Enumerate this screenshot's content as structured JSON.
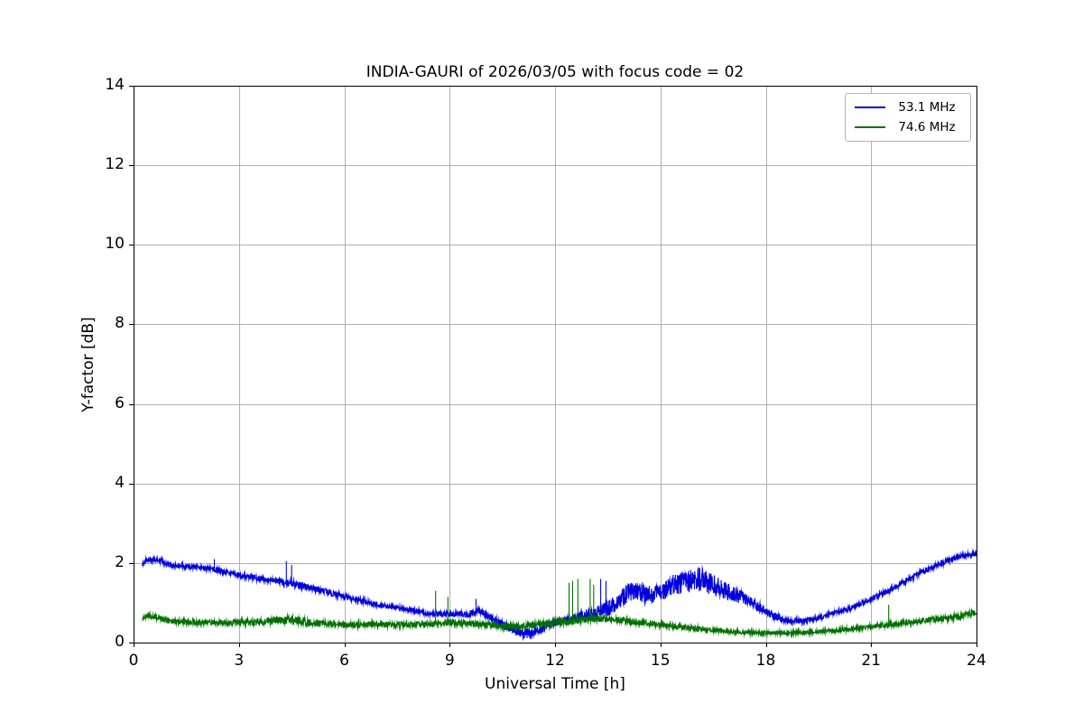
{
  "chart_data": {
    "type": "line",
    "title": "INDIA-GAURI of 2026/03/05 with focus code = 02",
    "xlabel": "Universal Time [h]",
    "ylabel": "Y-factor [dB]",
    "xlim": [
      0,
      24
    ],
    "ylim": [
      0,
      14
    ],
    "xticks": [
      0,
      3,
      6,
      9,
      12,
      15,
      18,
      21,
      24
    ],
    "yticks": [
      0,
      2,
      4,
      6,
      8,
      10,
      12,
      14
    ],
    "grid": true,
    "grid_color": "#b0b0b0",
    "legend_position": "upper right",
    "series": [
      {
        "label": "53.1 MHz",
        "color": "#0000dd",
        "base_points": [
          [
            0.25,
            2.0
          ],
          [
            0.4,
            2.1
          ],
          [
            0.8,
            2.05
          ],
          [
            1.0,
            1.95
          ],
          [
            1.5,
            1.92
          ],
          [
            2.0,
            1.88
          ],
          [
            2.5,
            1.8
          ],
          [
            3.0,
            1.7
          ],
          [
            3.5,
            1.62
          ],
          [
            4.0,
            1.55
          ],
          [
            4.5,
            1.5
          ],
          [
            5.0,
            1.38
          ],
          [
            5.5,
            1.28
          ],
          [
            6.0,
            1.15
          ],
          [
            6.5,
            1.05
          ],
          [
            7.0,
            0.95
          ],
          [
            7.5,
            0.88
          ],
          [
            8.0,
            0.8
          ],
          [
            8.5,
            0.72
          ],
          [
            9.0,
            0.72
          ],
          [
            9.5,
            0.7
          ],
          [
            9.8,
            0.8
          ],
          [
            10.2,
            0.6
          ],
          [
            10.6,
            0.4
          ],
          [
            11.0,
            0.25
          ],
          [
            11.3,
            0.22
          ],
          [
            11.6,
            0.35
          ],
          [
            12.0,
            0.5
          ],
          [
            12.4,
            0.6
          ],
          [
            12.8,
            0.7
          ],
          [
            13.2,
            0.75
          ],
          [
            13.6,
            0.9
          ],
          [
            14.0,
            1.2
          ],
          [
            14.3,
            1.35
          ],
          [
            14.6,
            1.2
          ],
          [
            15.0,
            1.25
          ],
          [
            15.4,
            1.45
          ],
          [
            15.8,
            1.55
          ],
          [
            16.1,
            1.6
          ],
          [
            16.5,
            1.45
          ],
          [
            17.0,
            1.25
          ],
          [
            17.4,
            1.1
          ],
          [
            17.8,
            0.9
          ],
          [
            18.2,
            0.68
          ],
          [
            18.6,
            0.55
          ],
          [
            19.0,
            0.55
          ],
          [
            19.4,
            0.6
          ],
          [
            19.8,
            0.7
          ],
          [
            20.4,
            0.85
          ],
          [
            21.0,
            1.1
          ],
          [
            21.5,
            1.3
          ],
          [
            22.0,
            1.55
          ],
          [
            22.5,
            1.8
          ],
          [
            23.0,
            2.0
          ],
          [
            23.5,
            2.15
          ],
          [
            24.0,
            2.25
          ]
        ],
        "noise_amplitude": [
          [
            0.25,
            0.07
          ],
          [
            2.0,
            0.06
          ],
          [
            4.0,
            0.07
          ],
          [
            4.5,
            0.1
          ],
          [
            5.0,
            0.08
          ],
          [
            8.0,
            0.06
          ],
          [
            10.0,
            0.09
          ],
          [
            10.8,
            0.13
          ],
          [
            11.3,
            0.13
          ],
          [
            12.0,
            0.09
          ],
          [
            12.6,
            0.08
          ],
          [
            13.0,
            0.15
          ],
          [
            13.8,
            0.22
          ],
          [
            14.3,
            0.28
          ],
          [
            15.0,
            0.2
          ],
          [
            15.5,
            0.3
          ],
          [
            16.2,
            0.3
          ],
          [
            17.0,
            0.2
          ],
          [
            17.8,
            0.12
          ],
          [
            18.5,
            0.07
          ],
          [
            20.0,
            0.06
          ],
          [
            22.0,
            0.07
          ],
          [
            24.0,
            0.08
          ]
        ],
        "spikes": [
          [
            2.3,
            2.1
          ],
          [
            4.35,
            2.05
          ],
          [
            4.5,
            1.95
          ],
          [
            9.75,
            1.1
          ],
          [
            13.3,
            1.6
          ],
          [
            13.45,
            1.55
          ]
        ]
      },
      {
        "label": "74.6 MHz",
        "color": "#007000",
        "base_points": [
          [
            0.25,
            0.62
          ],
          [
            0.5,
            0.68
          ],
          [
            1.0,
            0.55
          ],
          [
            1.5,
            0.52
          ],
          [
            2.0,
            0.5
          ],
          [
            3.0,
            0.5
          ],
          [
            3.5,
            0.52
          ],
          [
            4.0,
            0.55
          ],
          [
            4.5,
            0.58
          ],
          [
            5.0,
            0.5
          ],
          [
            6.0,
            0.45
          ],
          [
            7.0,
            0.45
          ],
          [
            8.0,
            0.45
          ],
          [
            9.0,
            0.5
          ],
          [
            10.0,
            0.45
          ],
          [
            10.5,
            0.42
          ],
          [
            11.0,
            0.4
          ],
          [
            11.5,
            0.45
          ],
          [
            12.0,
            0.5
          ],
          [
            12.5,
            0.55
          ],
          [
            13.0,
            0.6
          ],
          [
            13.5,
            0.6
          ],
          [
            14.0,
            0.55
          ],
          [
            14.5,
            0.5
          ],
          [
            15.0,
            0.45
          ],
          [
            15.5,
            0.4
          ],
          [
            16.0,
            0.35
          ],
          [
            16.5,
            0.32
          ],
          [
            17.0,
            0.28
          ],
          [
            17.5,
            0.25
          ],
          [
            18.0,
            0.25
          ],
          [
            19.0,
            0.25
          ],
          [
            20.0,
            0.3
          ],
          [
            21.0,
            0.4
          ],
          [
            22.0,
            0.5
          ],
          [
            23.0,
            0.6
          ],
          [
            23.5,
            0.65
          ],
          [
            24.0,
            0.75
          ]
        ],
        "noise_amplitude": [
          [
            0.25,
            0.08
          ],
          [
            2.0,
            0.07
          ],
          [
            4.0,
            0.1
          ],
          [
            4.6,
            0.12
          ],
          [
            5.5,
            0.08
          ],
          [
            8.0,
            0.08
          ],
          [
            10.0,
            0.08
          ],
          [
            11.5,
            0.09
          ],
          [
            12.5,
            0.1
          ],
          [
            13.5,
            0.09
          ],
          [
            15.0,
            0.07
          ],
          [
            17.0,
            0.06
          ],
          [
            19.0,
            0.05
          ],
          [
            21.0,
            0.06
          ],
          [
            23.0,
            0.08
          ],
          [
            24.0,
            0.08
          ]
        ],
        "spikes": [
          [
            8.6,
            1.3
          ],
          [
            8.95,
            1.15
          ],
          [
            12.4,
            1.5
          ],
          [
            12.5,
            1.55
          ],
          [
            12.65,
            1.6
          ],
          [
            13.0,
            1.6
          ],
          [
            13.1,
            1.45
          ],
          [
            21.5,
            0.95
          ]
        ]
      }
    ]
  }
}
